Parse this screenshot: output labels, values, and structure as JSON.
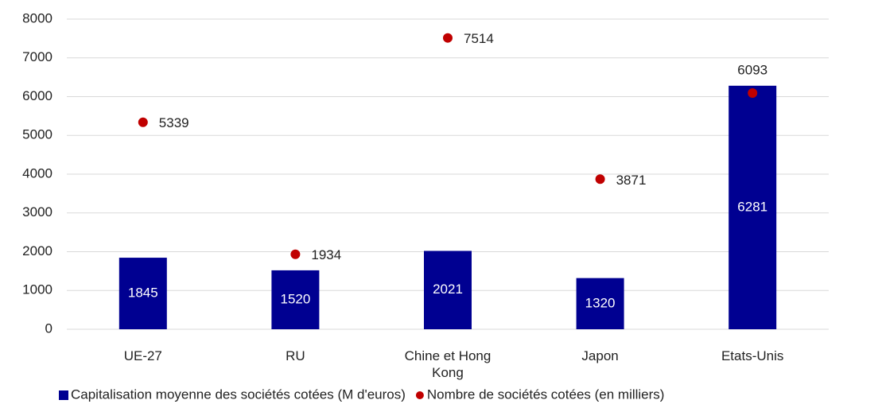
{
  "chart_data": {
    "type": "bar",
    "categories": [
      "UE-27",
      "RU",
      "Chine et Hong Kong",
      "Japon",
      "Etats-Unis"
    ],
    "series": [
      {
        "name": "Capitalisation moyenne des sociétés cotées (M d'euros)",
        "type": "bar",
        "color": "#000091",
        "values": [
          1845,
          1520,
          2021,
          1320,
          6281
        ]
      },
      {
        "name": "Nombre de sociétés cotées (en milliers)",
        "type": "scatter",
        "color": "#c00000",
        "values": [
          5339,
          1934,
          7514,
          3871,
          6093
        ]
      }
    ],
    "ylim": [
      0,
      8000
    ],
    "yticks": [
      0,
      1000,
      2000,
      3000,
      4000,
      5000,
      6000,
      7000,
      8000
    ],
    "grid": true,
    "legend": "bottom"
  }
}
